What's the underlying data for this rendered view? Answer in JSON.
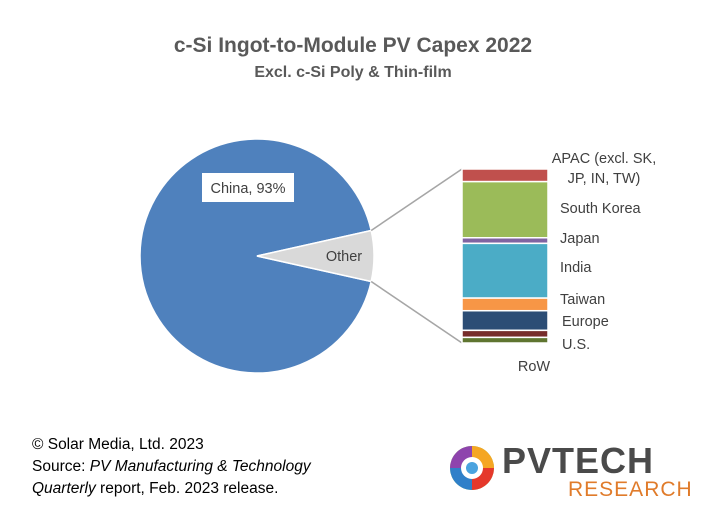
{
  "chart_data": {
    "type": "pie",
    "title": "c-Si Ingot-to-Module PV Capex 2022",
    "subtitle": "Excl. c-Si Poly & Thin-film",
    "pie": {
      "slices": [
        {
          "label": "China, 93%",
          "value": 93,
          "color": "#4f81bd"
        },
        {
          "label": "Other",
          "value": 7,
          "color": "#d9d9d9"
        }
      ]
    },
    "breakdown": {
      "of": "Other",
      "segments": [
        {
          "label": "APAC (excl. SK, JP, IN, TW)",
          "value": 0.45,
          "color": "#c0504d"
        },
        {
          "label": "South Korea",
          "value": 2.0,
          "color": "#9bbb59"
        },
        {
          "label": "Japan",
          "value": 0.2,
          "color": "#8064a2"
        },
        {
          "label": "India",
          "value": 1.95,
          "color": "#4bacc6"
        },
        {
          "label": "Taiwan",
          "value": 0.45,
          "color": "#f79646"
        },
        {
          "label": "Europe",
          "value": 0.7,
          "color": "#2c4d75"
        },
        {
          "label": "U.S.",
          "value": 0.25,
          "color": "#772c2a"
        },
        {
          "label": "RoW",
          "value": 0.2,
          "color": "#5f7530"
        }
      ],
      "label_lines": [
        [
          "APAC (excl. SK,",
          "JP, IN, TW)"
        ],
        [
          "South Korea"
        ],
        [
          "Japan"
        ],
        [
          "India"
        ],
        [
          "Taiwan"
        ],
        [
          "Europe"
        ],
        [
          "U.S."
        ],
        [
          "RoW"
        ]
      ]
    }
  },
  "footer": {
    "line1": "© Solar Media, Ltd. 2023",
    "line2_prefix": "Source: ",
    "line2_italic": "PV Manufacturing & Technology",
    "line3_italic": "Quarterly",
    "line3_rest": " report, Feb. 2023 release."
  },
  "logo": {
    "text1": "PVTECH",
    "text2": "RESEARCH"
  },
  "colors": {
    "title": "#595959",
    "connector": "#a6a6a6",
    "logo_text": "#4a4a4a",
    "logo_accent": "#e07b2a"
  }
}
